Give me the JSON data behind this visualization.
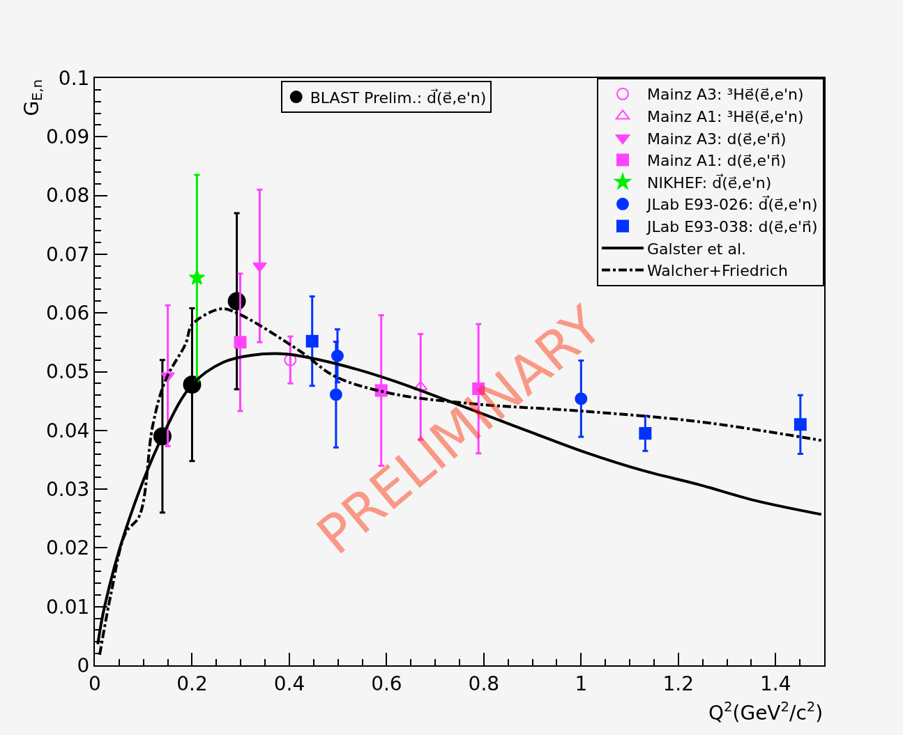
{
  "chart_data": {
    "type": "scatter",
    "xlabel": "Q$^{2}$(GeV$^{2}$/c$^{2}$)",
    "ylabel": "G$_{E,n}$",
    "xlim": [
      0,
      1.5
    ],
    "xticks": [
      0,
      {
        "value": 0.2,
        "label": "0.2"
      },
      {
        "value": 0.4,
        "label": "0.4"
      },
      {
        "value": 0.6,
        "label": "0.6"
      },
      {
        "value": 0.8,
        "label": "0.8"
      },
      1,
      {
        "value": 1.2,
        "label": "1.2"
      },
      {
        "value": 1.4,
        "label": "1.4"
      }
    ],
    "ylim": [
      0,
      0.1
    ],
    "yticks": [
      0,
      0.01,
      0.02,
      0.03,
      0.04,
      0.05,
      0.06,
      0.07,
      0.08,
      0.09,
      0.1
    ],
    "grid": false,
    "legend": "top right",
    "annotations": [
      "PRELIMINARY"
    ],
    "series": [
      {
        "name": "BLAST Prelim.: d⃗(e⃗,e'n)",
        "marker": "circle",
        "color": "#000000",
        "x": [
          0.139,
          0.2,
          0.292
        ],
        "values": [
          0.039,
          0.0478,
          0.062
        ],
        "errors": [
          0.013,
          0.013,
          0.015
        ]
      },
      {
        "name": "Mainz A3: ³He⃗(e⃗,e'n)",
        "marker": "circle-open",
        "color": "#ff44ff",
        "x": [
          0.402
        ],
        "values": [
          0.052
        ],
        "errors": [
          0.004
        ]
      },
      {
        "name": "Mainz A1: ³He⃗(e⃗,e'n)",
        "marker": "triangle-up-open",
        "color": "#ff44ff",
        "x": [
          0.67
        ],
        "values": [
          0.0474
        ],
        "errors": [
          0.009
        ]
      },
      {
        "name": "Mainz A3: d(e⃗,e'n⃗)",
        "marker": "triangle-down",
        "color": "#ff44ff",
        "x": [
          0.15,
          0.339
        ],
        "values": [
          0.0493,
          0.068
        ],
        "errors": [
          0.012,
          0.013
        ]
      },
      {
        "name": "Mainz A1: d(e⃗,e'n⃗)",
        "marker": "square",
        "color": "#ff44ff",
        "x": [
          0.299,
          0.589,
          0.789
        ],
        "values": [
          0.055,
          0.0468,
          0.0471
        ],
        "errors": [
          0.0117,
          0.0128,
          0.011
        ]
      },
      {
        "name": "NIKHEF: d⃗(e⃗,e'n)",
        "marker": "star",
        "color": "#00ee00",
        "x": [
          0.21
        ],
        "values": [
          0.066
        ],
        "errors": [
          0.0175
        ]
      },
      {
        "name": "JLab E93-026: d⃗(e⃗,e'n)",
        "marker": "circle",
        "color": "#0033ff",
        "x": [
          0.496,
          0.499,
          1.0
        ],
        "values": [
          0.0461,
          0.0527,
          0.0454
        ],
        "errors": [
          0.009,
          0.0045,
          0.0065
        ]
      },
      {
        "name": "JLab E93-038: d(e⃗,e'n⃗)",
        "marker": "square",
        "color": "#0033ff",
        "x": [
          0.447,
          1.132,
          1.451
        ],
        "values": [
          0.0552,
          0.0395,
          0.041
        ],
        "errors": [
          0.0076,
          0.003,
          0.005
        ]
      },
      {
        "name": "Galster et al.",
        "type": "line",
        "line_style": "solid",
        "color": "#000000",
        "x": [
          0.006,
          0.02,
          0.063,
          0.139,
          0.2,
          0.264,
          0.322,
          0.394,
          0.494,
          0.609,
          0.782,
          0.897,
          1.011,
          1.126,
          1.241,
          1.356,
          1.494
        ],
        "values": [
          0.0036,
          0.01,
          0.023,
          0.039,
          0.0478,
          0.0516,
          0.0528,
          0.053,
          0.0514,
          0.0486,
          0.0433,
          0.0397,
          0.0362,
          0.0332,
          0.0308,
          0.0281,
          0.0257
        ]
      },
      {
        "name": "Walcher+Friedrich",
        "type": "line",
        "line_style": "dashdot",
        "color": "#000000",
        "x": [
          0.01,
          0.034,
          0.063,
          0.092,
          0.119,
          0.145,
          0.187,
          0.2,
          0.259,
          0.292,
          0.422,
          0.494,
          0.609,
          0.782,
          1.0,
          1.241,
          1.494
        ],
        "values": [
          0.0018,
          0.0125,
          0.0225,
          0.0255,
          0.0408,
          0.0485,
          0.0548,
          0.058,
          0.0607,
          0.06,
          0.0535,
          0.0492,
          0.0463,
          0.0445,
          0.0433,
          0.0415,
          0.0383
        ]
      }
    ]
  }
}
